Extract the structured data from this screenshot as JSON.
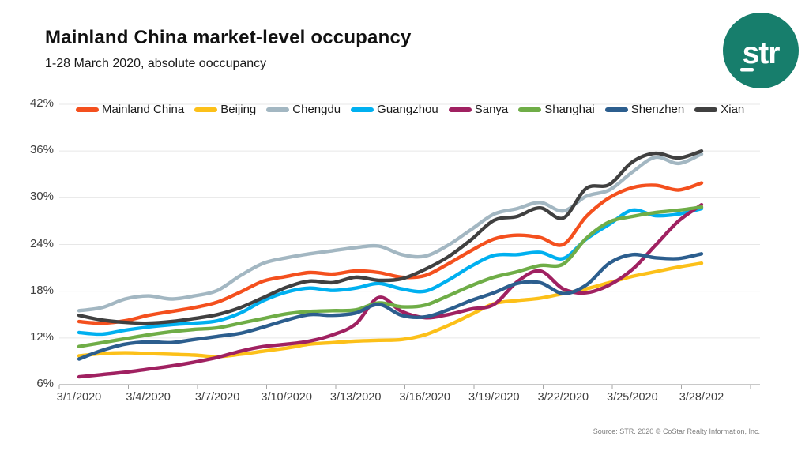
{
  "header": {
    "title": "Mainland China market-level occupancy",
    "subtitle": "1-28 March 2020, absolute ooccupancy",
    "logo_text": "str",
    "logo_color": "#177e6c"
  },
  "source": "Source: STR. 2020 © CoStar Realty Information, Inc.",
  "chart_data": {
    "type": "line",
    "title": "Mainland China market-level occupancy",
    "subtitle": "1-28 March 2020, absolute ooccupancy",
    "categories": [
      "3/1/2020",
      "3/2/2020",
      "3/3/2020",
      "3/4/2020",
      "3/5/2020",
      "3/6/2020",
      "3/7/2020",
      "3/8/2020",
      "3/9/2020",
      "3/10/2020",
      "3/11/2020",
      "3/12/2020",
      "3/13/2020",
      "3/14/2020",
      "3/15/2020",
      "3/16/2020",
      "3/17/2020",
      "3/18/2020",
      "3/19/2020",
      "3/20/2020",
      "3/21/2020",
      "3/22/2020",
      "3/23/2020",
      "3/24/2020",
      "3/25/2020",
      "3/26/2020",
      "3/27/2020",
      "3/28/2020"
    ],
    "x_tick_labels": [
      "3/1/2020",
      "3/4/2020",
      "3/7/2020",
      "3/10/2020",
      "3/13/2020",
      "3/16/2020",
      "3/19/2020",
      "3/22/2020",
      "3/25/2020",
      "3/28/202"
    ],
    "y_tick_values": [
      6,
      12,
      18,
      24,
      30,
      36,
      42
    ],
    "y_tick_suffix": "%",
    "ylim": [
      6,
      42
    ],
    "grid": "horizontal",
    "legend_position": "top",
    "series": [
      {
        "name": "Mainland China",
        "color": "#f4501e",
        "values": [
          14.1,
          13.9,
          14.2,
          14.9,
          15.4,
          15.9,
          16.6,
          17.9,
          19.3,
          19.9,
          20.4,
          20.2,
          20.6,
          20.4,
          19.8,
          20.0,
          21.5,
          23.2,
          24.7,
          25.2,
          24.9,
          24.0,
          27.6,
          30.0,
          31.3,
          31.6,
          31.0,
          31.9
        ]
      },
      {
        "name": "Beijing",
        "color": "#fcc019",
        "values": [
          9.7,
          10.0,
          10.1,
          10.0,
          9.9,
          9.8,
          9.6,
          9.9,
          10.3,
          10.7,
          11.2,
          11.4,
          11.6,
          11.7,
          11.8,
          12.4,
          13.6,
          15.0,
          16.4,
          16.8,
          17.1,
          17.7,
          18.3,
          19.1,
          19.9,
          20.5,
          21.1,
          21.6
        ]
      },
      {
        "name": "Chengdu",
        "color": "#a3b7c2",
        "values": [
          15.5,
          15.9,
          17.0,
          17.4,
          17.0,
          17.4,
          18.1,
          20.0,
          21.6,
          22.3,
          22.8,
          23.2,
          23.6,
          23.8,
          22.7,
          22.5,
          23.9,
          25.9,
          27.9,
          28.6,
          29.4,
          28.3,
          30.2,
          31.0,
          33.3,
          35.2,
          34.4,
          35.6
        ]
      },
      {
        "name": "Guangzhou",
        "color": "#00b0f0",
        "values": [
          12.7,
          12.5,
          13.0,
          13.4,
          13.7,
          13.9,
          14.2,
          15.2,
          16.8,
          17.9,
          18.4,
          18.1,
          18.4,
          19.0,
          18.3,
          18.0,
          19.4,
          21.2,
          22.6,
          22.7,
          23.0,
          22.2,
          24.7,
          26.6,
          28.4,
          27.7,
          27.9,
          28.6
        ]
      },
      {
        "name": "Sanya",
        "color": "#a02161",
        "values": [
          7.0,
          7.3,
          7.6,
          8.0,
          8.4,
          8.9,
          9.5,
          10.3,
          10.9,
          11.2,
          11.6,
          12.4,
          13.8,
          17.2,
          15.4,
          14.6,
          15.0,
          15.7,
          16.3,
          19.2,
          20.6,
          18.3,
          17.8,
          18.8,
          20.8,
          23.9,
          27.0,
          29.1
        ]
      },
      {
        "name": "Shanghai",
        "color": "#6fad47",
        "values": [
          10.9,
          11.4,
          11.9,
          12.4,
          12.8,
          13.1,
          13.3,
          13.9,
          14.5,
          15.1,
          15.4,
          15.5,
          15.6,
          16.5,
          16.0,
          16.2,
          17.4,
          18.7,
          19.8,
          20.5,
          21.3,
          21.5,
          24.8,
          26.9,
          27.6,
          28.1,
          28.4,
          28.8
        ]
      },
      {
        "name": "Shenzhen",
        "color": "#2c5e8e",
        "values": [
          9.3,
          10.4,
          11.2,
          11.5,
          11.4,
          11.8,
          12.2,
          12.6,
          13.4,
          14.3,
          15.0,
          14.9,
          15.2,
          16.3,
          14.9,
          14.7,
          15.6,
          16.8,
          17.8,
          19.0,
          19.1,
          17.7,
          18.8,
          21.6,
          22.7,
          22.3,
          22.2,
          22.8
        ]
      },
      {
        "name": "Xian",
        "color": "#404040",
        "values": [
          14.9,
          14.3,
          14.0,
          13.9,
          14.1,
          14.5,
          15.0,
          15.9,
          17.2,
          18.5,
          19.3,
          19.1,
          19.8,
          19.4,
          19.6,
          20.8,
          22.4,
          24.6,
          27.1,
          27.6,
          28.7,
          27.4,
          31.2,
          31.7,
          34.6,
          35.7,
          35.1,
          36.0
        ]
      }
    ]
  }
}
